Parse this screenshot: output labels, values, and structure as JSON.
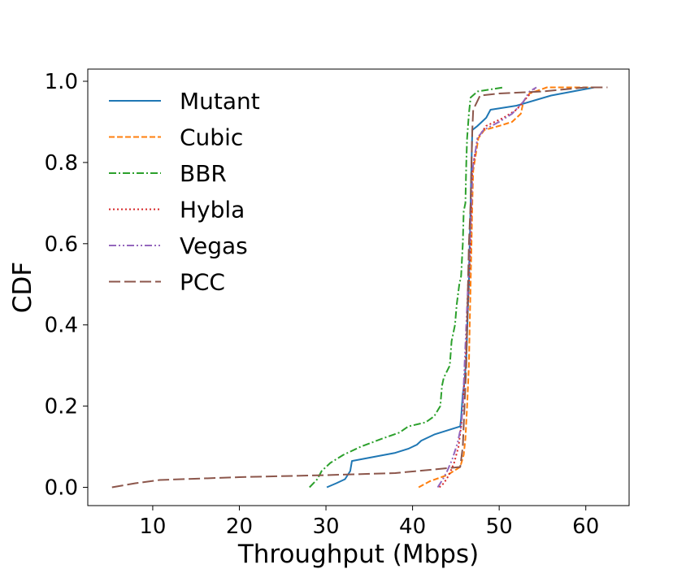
{
  "chart_data": {
    "type": "line",
    "xlabel": "Throughput (Mbps)",
    "ylabel": "CDF",
    "xlim": [
      2.5,
      65.0
    ],
    "ylim": [
      -0.045,
      1.03
    ],
    "xticks": [
      10,
      20,
      30,
      40,
      50,
      60
    ],
    "xtick_labels": [
      "10",
      "20",
      "30",
      "40",
      "50",
      "60"
    ],
    "yticks": [
      0.0,
      0.2,
      0.4,
      0.6,
      0.8,
      1.0
    ],
    "ytick_labels": [
      "0.0",
      "0.2",
      "0.4",
      "0.6",
      "0.8",
      "1.0"
    ],
    "grid": false,
    "legend_position": "upper-left",
    "series": [
      {
        "name": "Mutant",
        "color": "#1f77b4",
        "dash": "solid",
        "points": [
          [
            30.1,
            0.0
          ],
          [
            31.2,
            0.01
          ],
          [
            32.2,
            0.02
          ],
          [
            32.8,
            0.04
          ],
          [
            33.0,
            0.065
          ],
          [
            35.5,
            0.075
          ],
          [
            38.0,
            0.085
          ],
          [
            39.5,
            0.095
          ],
          [
            40.5,
            0.105
          ],
          [
            41.0,
            0.115
          ],
          [
            42.5,
            0.13
          ],
          [
            44.0,
            0.14
          ],
          [
            45.5,
            0.15
          ],
          [
            45.6,
            0.17
          ],
          [
            45.7,
            0.2
          ],
          [
            45.8,
            0.23
          ],
          [
            46.0,
            0.26
          ],
          [
            46.1,
            0.29
          ],
          [
            46.2,
            0.32
          ],
          [
            46.3,
            0.38
          ],
          [
            46.4,
            0.45
          ],
          [
            46.5,
            0.5
          ],
          [
            46.6,
            0.6
          ],
          [
            46.7,
            0.7
          ],
          [
            46.8,
            0.8
          ],
          [
            46.9,
            0.88
          ],
          [
            47.5,
            0.89
          ],
          [
            48.5,
            0.91
          ],
          [
            49.0,
            0.93
          ],
          [
            52.0,
            0.94
          ],
          [
            56.0,
            0.965
          ],
          [
            61.0,
            0.985
          ]
        ]
      },
      {
        "name": "Cubic",
        "color": "#ff7f0e",
        "dash": "dashed",
        "points": [
          [
            40.7,
            0.0
          ],
          [
            42.0,
            0.015
          ],
          [
            44.0,
            0.03
          ],
          [
            45.5,
            0.05
          ],
          [
            45.9,
            0.08
          ],
          [
            46.1,
            0.12
          ],
          [
            46.3,
            0.2
          ],
          [
            46.5,
            0.3
          ],
          [
            46.6,
            0.4
          ],
          [
            46.7,
            0.5
          ],
          [
            46.8,
            0.6
          ],
          [
            46.9,
            0.7
          ],
          [
            47.0,
            0.78
          ],
          [
            47.3,
            0.82
          ],
          [
            47.6,
            0.86
          ],
          [
            48.3,
            0.88
          ],
          [
            50.0,
            0.89
          ],
          [
            51.5,
            0.9
          ],
          [
            52.5,
            0.92
          ],
          [
            52.8,
            0.95
          ],
          [
            53.5,
            0.97
          ],
          [
            55.5,
            0.985
          ],
          [
            61.0,
            0.985
          ]
        ]
      },
      {
        "name": "BBR",
        "color": "#2ca02c",
        "dash": "dashdot",
        "points": [
          [
            28.1,
            0.0
          ],
          [
            29.0,
            0.02
          ],
          [
            29.5,
            0.04
          ],
          [
            30.5,
            0.06
          ],
          [
            32.0,
            0.08
          ],
          [
            34.0,
            0.1
          ],
          [
            36.5,
            0.12
          ],
          [
            38.5,
            0.135
          ],
          [
            39.5,
            0.15
          ],
          [
            41.5,
            0.16
          ],
          [
            42.5,
            0.175
          ],
          [
            43.2,
            0.2
          ],
          [
            43.4,
            0.25
          ],
          [
            43.6,
            0.27
          ],
          [
            44.3,
            0.3
          ],
          [
            44.5,
            0.36
          ],
          [
            44.9,
            0.4
          ],
          [
            45.1,
            0.45
          ],
          [
            45.4,
            0.5
          ],
          [
            45.6,
            0.52
          ],
          [
            45.8,
            0.6
          ],
          [
            45.9,
            0.68
          ],
          [
            46.1,
            0.7
          ],
          [
            46.2,
            0.8
          ],
          [
            46.3,
            0.86
          ],
          [
            46.5,
            0.92
          ],
          [
            46.7,
            0.96
          ],
          [
            47.5,
            0.975
          ],
          [
            49.0,
            0.98
          ],
          [
            50.5,
            0.985
          ]
        ]
      },
      {
        "name": "Hybla",
        "color": "#d62728",
        "dash": "dotted",
        "points": [
          [
            43.1,
            0.0
          ],
          [
            43.6,
            0.01
          ],
          [
            44.2,
            0.03
          ],
          [
            44.8,
            0.06
          ],
          [
            45.3,
            0.1
          ],
          [
            45.6,
            0.15
          ],
          [
            45.8,
            0.2
          ],
          [
            46.1,
            0.3
          ],
          [
            46.3,
            0.4
          ],
          [
            46.5,
            0.5
          ],
          [
            46.7,
            0.6
          ],
          [
            46.8,
            0.7
          ],
          [
            46.9,
            0.78
          ],
          [
            47.2,
            0.82
          ],
          [
            47.5,
            0.86
          ],
          [
            48.5,
            0.89
          ],
          [
            50.5,
            0.91
          ],
          [
            52.0,
            0.93
          ],
          [
            53.0,
            0.955
          ],
          [
            53.8,
            0.975
          ],
          [
            54.2,
            0.985
          ]
        ]
      },
      {
        "name": "Vegas",
        "color": "#9467bd",
        "dash": "dashdotdot",
        "points": [
          [
            42.9,
            0.0
          ],
          [
            43.5,
            0.02
          ],
          [
            44.0,
            0.04
          ],
          [
            44.6,
            0.07
          ],
          [
            45.2,
            0.11
          ],
          [
            45.6,
            0.15
          ],
          [
            45.8,
            0.2
          ],
          [
            46.0,
            0.3
          ],
          [
            46.2,
            0.4
          ],
          [
            46.4,
            0.5
          ],
          [
            46.6,
            0.6
          ],
          [
            46.8,
            0.7
          ],
          [
            46.9,
            0.78
          ],
          [
            47.2,
            0.82
          ],
          [
            47.5,
            0.86
          ],
          [
            48.2,
            0.88
          ],
          [
            50.0,
            0.9
          ],
          [
            51.5,
            0.92
          ],
          [
            52.8,
            0.95
          ],
          [
            53.5,
            0.975
          ],
          [
            54.3,
            0.985
          ]
        ]
      },
      {
        "name": "PCC",
        "color": "#8c564b",
        "dash": "longdash",
        "points": [
          [
            5.3,
            0.0
          ],
          [
            8.0,
            0.01
          ],
          [
            10.8,
            0.018
          ],
          [
            20.0,
            0.025
          ],
          [
            30.0,
            0.03
          ],
          [
            38.0,
            0.035
          ],
          [
            43.0,
            0.045
          ],
          [
            45.5,
            0.05
          ],
          [
            45.8,
            0.1
          ],
          [
            46.0,
            0.2
          ],
          [
            46.2,
            0.3
          ],
          [
            46.3,
            0.4
          ],
          [
            46.4,
            0.5
          ],
          [
            46.5,
            0.6
          ],
          [
            46.7,
            0.7
          ],
          [
            46.8,
            0.8
          ],
          [
            46.9,
            0.88
          ],
          [
            47.0,
            0.93
          ],
          [
            47.8,
            0.965
          ],
          [
            50.0,
            0.97
          ],
          [
            55.0,
            0.975
          ],
          [
            60.0,
            0.985
          ],
          [
            62.5,
            0.985
          ]
        ]
      }
    ]
  }
}
